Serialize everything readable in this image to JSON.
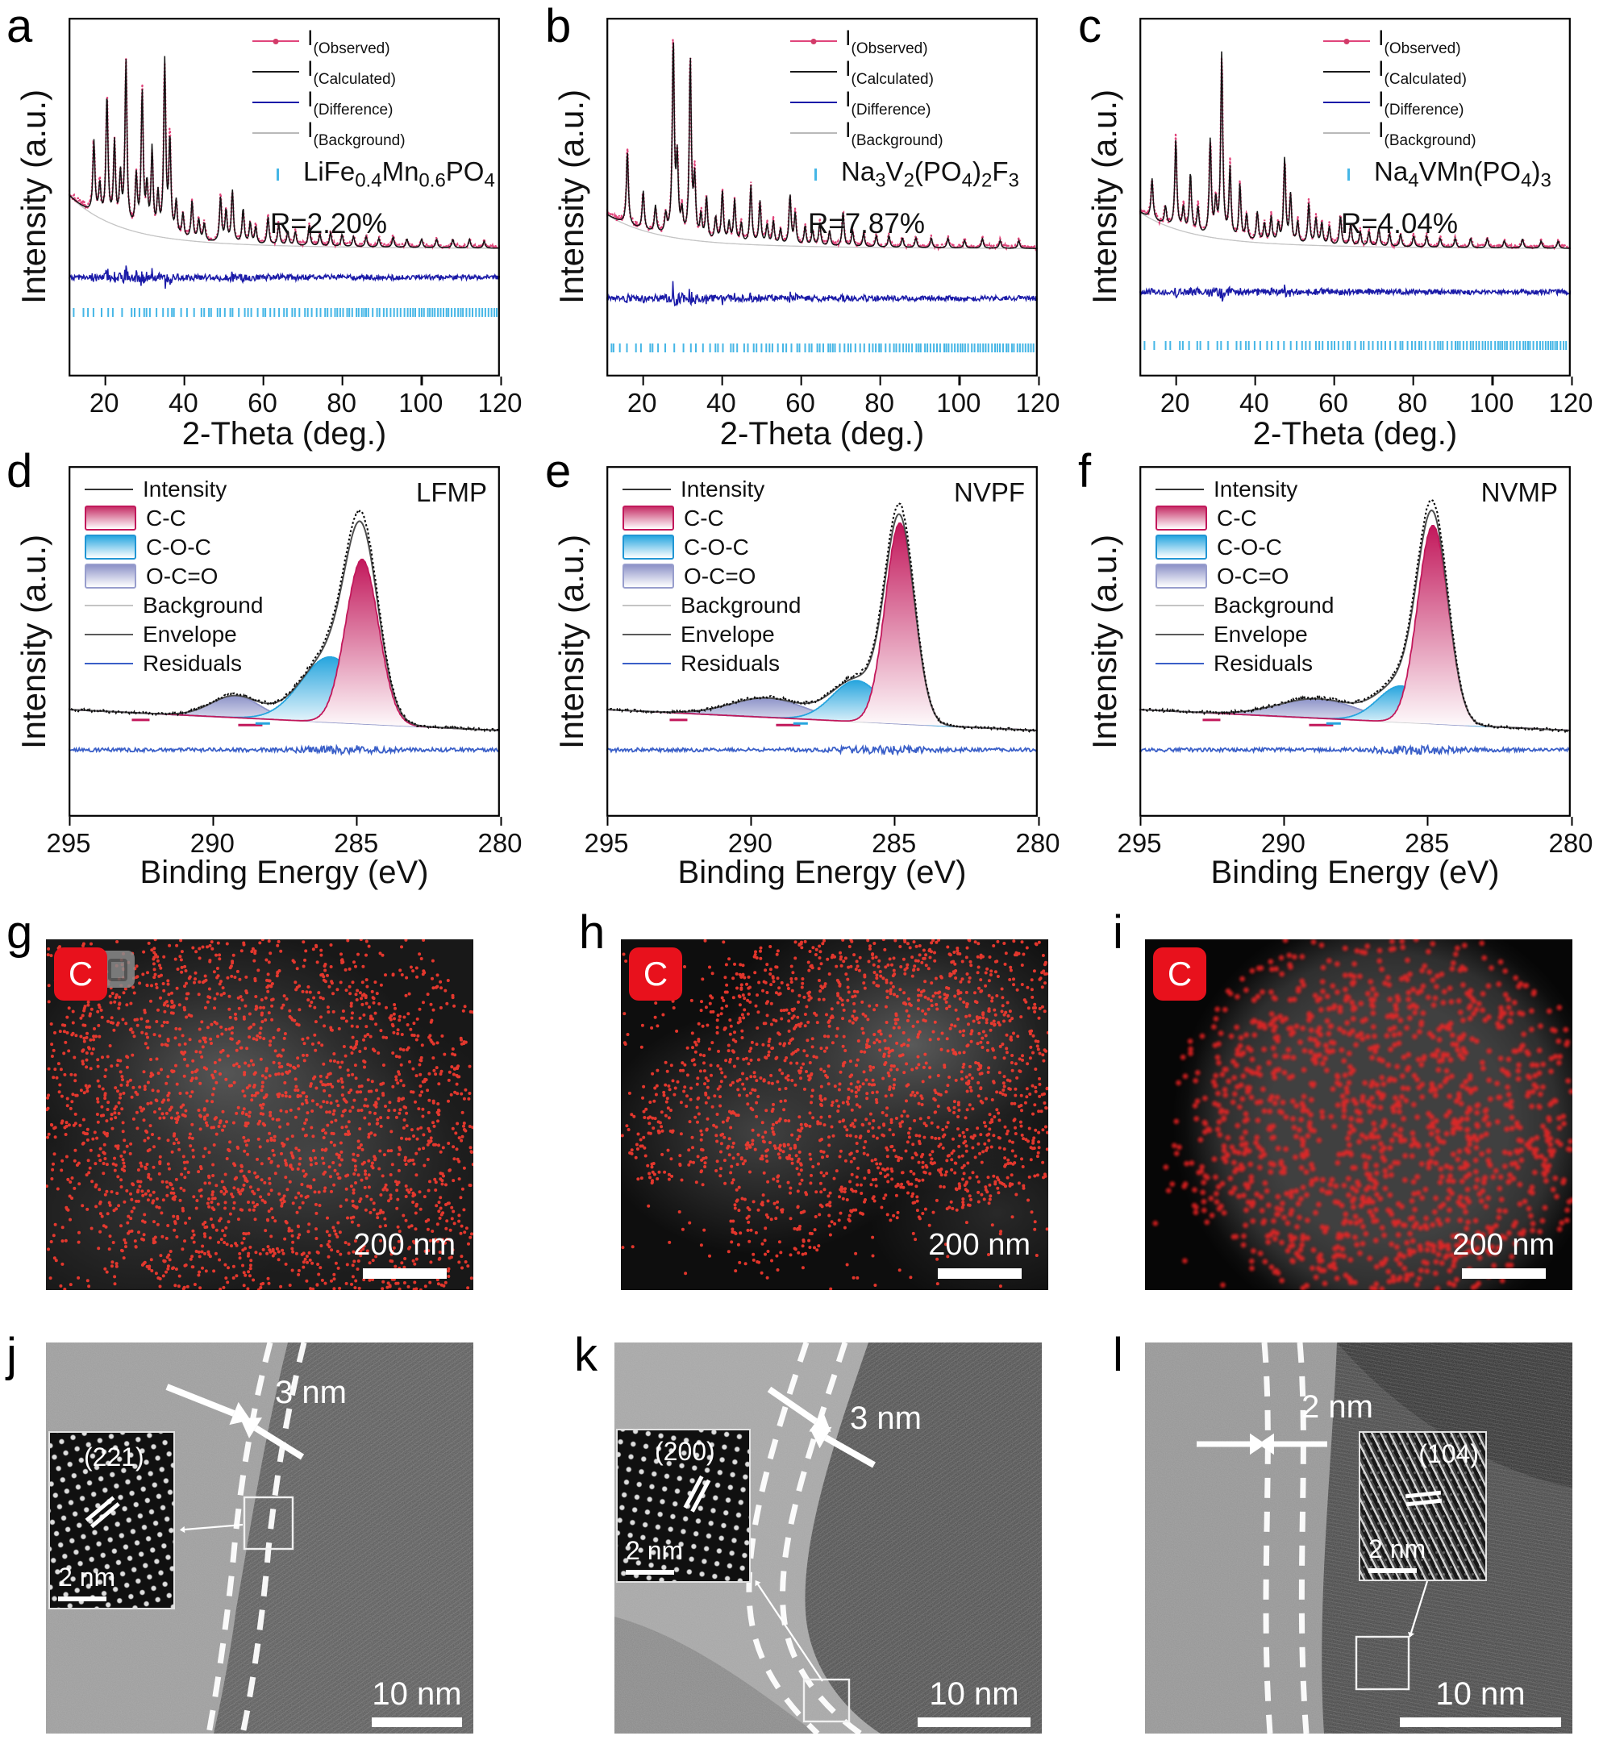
{
  "colors": {
    "observed": "#e0457b",
    "calculated": "#141414",
    "difference": "#1b1ba8",
    "background_line": "#c4c4c4",
    "bragg_ticks": "#45b6e6",
    "cc": "#c2185b",
    "coc": "#27a5de",
    "oco": "#8d93c8",
    "envelope": "#4f4f4f",
    "residuals": "#3a5fc8",
    "intensity": "#0d0d0d",
    "badge_red": "#e8111c",
    "map_dots": "#ff3b30"
  },
  "xrd_axis": {
    "xlabel": "2-Theta (deg.)",
    "ylabel": "Intensity (a.u.)",
    "ticks": [
      "20",
      "40",
      "60",
      "80",
      "100",
      "120"
    ]
  },
  "xps_axis": {
    "xlabel": "Binding Energy (eV)",
    "ylabel": "Intensity (a.u.)",
    "ticks": [
      "295",
      "290",
      "285",
      "280"
    ]
  },
  "xrd_legend": [
    {
      "main": "I",
      "sub": "(Observed)"
    },
    {
      "main": "I",
      "sub": "(Calculated)"
    },
    {
      "main": "I",
      "sub": "(Difference)"
    },
    {
      "main": "I",
      "sub": "(Background)"
    }
  ],
  "xps_legend": [
    "Intensity",
    "C-C",
    "C-O-C",
    "O-C=O",
    "Background",
    "Envelope",
    "Residuals"
  ],
  "xrd_panels": [
    {
      "letter": "a",
      "formula": [
        [
          "LiFe",
          ""
        ],
        [
          "",
          "0.4"
        ],
        [
          "Mn",
          ""
        ],
        [
          "",
          "0.6"
        ],
        [
          "PO",
          ""
        ],
        [
          "",
          "4"
        ]
      ],
      "r_label": "R=2.20%"
    },
    {
      "letter": "b",
      "formula": [
        [
          "Na",
          ""
        ],
        [
          "",
          "3"
        ],
        [
          "V",
          ""
        ],
        [
          "",
          "2"
        ],
        [
          "(PO",
          ""
        ],
        [
          "",
          "4"
        ],
        [
          ")",
          ""
        ],
        [
          "",
          "2"
        ],
        [
          "F",
          ""
        ],
        [
          "",
          "3"
        ]
      ],
      "r_label": "R=7.87%"
    },
    {
      "letter": "c",
      "formula": [
        [
          "Na",
          ""
        ],
        [
          "",
          "4"
        ],
        [
          "VMn(PO",
          ""
        ],
        [
          "",
          "4"
        ],
        [
          ")",
          ""
        ],
        [
          "",
          "3"
        ]
      ],
      "r_label": "R=4.04%"
    }
  ],
  "xps_panels": [
    {
      "letter": "d",
      "tag": "LFMP"
    },
    {
      "letter": "e",
      "tag": "NVPF"
    },
    {
      "letter": "f",
      "tag": "NVMP"
    }
  ],
  "eds_panels": [
    {
      "letter": "g",
      "element_label": "C",
      "scale_label": "200 nm"
    },
    {
      "letter": "h",
      "element_label": "C",
      "scale_label": "200 nm"
    },
    {
      "letter": "i",
      "element_label": "C",
      "scale_label": "200 nm"
    }
  ],
  "tem_panels": [
    {
      "letter": "j",
      "thickness_label": "3 nm",
      "plane_label": "(221)",
      "inset_scale_label": "2 nm",
      "scale_label": "10 nm"
    },
    {
      "letter": "k",
      "thickness_label": "3 nm",
      "plane_label": "(200)",
      "inset_scale_label": "2 nm",
      "scale_label": "10 nm"
    },
    {
      "letter": "l",
      "thickness_label": "2 nm",
      "plane_label": "(104)",
      "inset_scale_label": "2 nm",
      "scale_label": "10 nm"
    }
  ],
  "chart_data": [
    {
      "id": "xrd-a",
      "type": "line",
      "sample": "LiFe0.4Mn0.6PO4",
      "r_factor": "R=2.20%",
      "xlabel": "2-Theta (deg.)",
      "ylabel": "Intensity (a.u.)",
      "xlim": [
        11,
        120
      ],
      "legend_position": "top-center",
      "series": [
        "I(Observed)",
        "I(Calculated)",
        "I(Difference)",
        "I(Background)",
        "Bragg positions"
      ],
      "peaks": [
        [
          17.4,
          0.42
        ],
        [
          18.9,
          0.18
        ],
        [
          20.7,
          0.72
        ],
        [
          22.6,
          0.46
        ],
        [
          24.1,
          0.28
        ],
        [
          25.5,
          0.95
        ],
        [
          28.1,
          0.3
        ],
        [
          29.6,
          0.8
        ],
        [
          30.8,
          0.25
        ],
        [
          32.1,
          0.48
        ],
        [
          33.6,
          0.22
        ],
        [
          35.3,
          1.0
        ],
        [
          36.6,
          0.55
        ],
        [
          38.2,
          0.2
        ],
        [
          39.9,
          0.14
        ],
        [
          42.2,
          0.22
        ],
        [
          43.9,
          0.12
        ],
        [
          45.3,
          0.1
        ],
        [
          49.4,
          0.26
        ],
        [
          50.8,
          0.18
        ],
        [
          52.4,
          0.3
        ],
        [
          55.1,
          0.2
        ],
        [
          56.9,
          0.12
        ],
        [
          58.3,
          0.1
        ],
        [
          61.4,
          0.16
        ],
        [
          64.1,
          0.12
        ],
        [
          66.4,
          0.08
        ],
        [
          68.3,
          0.08
        ],
        [
          71.8,
          0.12
        ],
        [
          74.5,
          0.07
        ],
        [
          77.2,
          0.08
        ],
        [
          80.1,
          0.07
        ],
        [
          83.0,
          0.06
        ],
        [
          86.2,
          0.06
        ],
        [
          89.4,
          0.05
        ],
        [
          93.0,
          0.06
        ],
        [
          96.5,
          0.05
        ],
        [
          100.2,
          0.05
        ],
        [
          104.0,
          0.05
        ],
        [
          108.1,
          0.05
        ],
        [
          112.3,
          0.05
        ],
        [
          116.0,
          0.04
        ]
      ]
    },
    {
      "id": "xrd-b",
      "type": "line",
      "sample": "Na3V2(PO4)2F3",
      "r_factor": "R=7.87%",
      "xlabel": "2-Theta (deg.)",
      "ylabel": "Intensity (a.u.)",
      "xlim": [
        11,
        120
      ],
      "legend_position": "top-center",
      "series": [
        "I(Observed)",
        "I(Calculated)",
        "I(Difference)",
        "I(Background)",
        "Bragg positions"
      ],
      "peaks": [
        [
          16.3,
          0.38
        ],
        [
          20.3,
          0.2
        ],
        [
          23.4,
          0.14
        ],
        [
          26.0,
          0.1
        ],
        [
          27.9,
          1.0
        ],
        [
          28.9,
          0.38
        ],
        [
          30.1,
          0.12
        ],
        [
          32.2,
          0.92
        ],
        [
          33.3,
          0.3
        ],
        [
          34.9,
          0.12
        ],
        [
          36.3,
          0.22
        ],
        [
          38.6,
          0.12
        ],
        [
          40.3,
          0.26
        ],
        [
          42.0,
          0.1
        ],
        [
          43.4,
          0.22
        ],
        [
          45.1,
          0.1
        ],
        [
          47.5,
          0.3
        ],
        [
          49.8,
          0.22
        ],
        [
          51.6,
          0.1
        ],
        [
          53.2,
          0.12
        ],
        [
          55.0,
          0.08
        ],
        [
          57.4,
          0.26
        ],
        [
          58.7,
          0.16
        ],
        [
          61.2,
          0.1
        ],
        [
          63.1,
          0.08
        ],
        [
          64.9,
          0.12
        ],
        [
          67.4,
          0.08
        ],
        [
          70.8,
          0.18
        ],
        [
          73.2,
          0.08
        ],
        [
          76.0,
          0.07
        ],
        [
          79.2,
          0.06
        ],
        [
          82.4,
          0.06
        ],
        [
          85.8,
          0.05
        ],
        [
          89.2,
          0.05
        ],
        [
          93.1,
          0.05
        ],
        [
          97.3,
          0.05
        ],
        [
          101.5,
          0.04
        ],
        [
          106.0,
          0.05
        ],
        [
          110.5,
          0.04
        ],
        [
          115.2,
          0.04
        ]
      ]
    },
    {
      "id": "xrd-c",
      "type": "line",
      "sample": "Na4VMn(PO4)3",
      "r_factor": "R=4.04%",
      "xlabel": "2-Theta (deg.)",
      "ylabel": "Intensity (a.u.)",
      "xlim": [
        11,
        120
      ],
      "legend_position": "top-center",
      "series": [
        "I(Observed)",
        "I(Calculated)",
        "I(Difference)",
        "I(Background)",
        "Bragg positions"
      ],
      "peaks": [
        [
          14.2,
          0.22
        ],
        [
          17.6,
          0.1
        ],
        [
          20.2,
          0.48
        ],
        [
          22.1,
          0.12
        ],
        [
          23.9,
          0.32
        ],
        [
          25.8,
          0.14
        ],
        [
          28.9,
          0.52
        ],
        [
          30.3,
          0.18
        ],
        [
          31.8,
          1.0
        ],
        [
          33.9,
          0.38
        ],
        [
          36.4,
          0.3
        ],
        [
          38.1,
          0.14
        ],
        [
          40.8,
          0.16
        ],
        [
          42.6,
          0.1
        ],
        [
          44.3,
          0.14
        ],
        [
          46.1,
          0.1
        ],
        [
          47.7,
          0.46
        ],
        [
          49.2,
          0.26
        ],
        [
          51.0,
          0.12
        ],
        [
          53.8,
          0.22
        ],
        [
          55.6,
          0.14
        ],
        [
          57.1,
          0.12
        ],
        [
          59.0,
          0.1
        ],
        [
          61.8,
          0.16
        ],
        [
          64.4,
          0.12
        ],
        [
          66.8,
          0.08
        ],
        [
          69.0,
          0.08
        ],
        [
          71.5,
          0.1
        ],
        [
          74.2,
          0.07
        ],
        [
          77.0,
          0.07
        ],
        [
          80.3,
          0.06
        ],
        [
          83.6,
          0.06
        ],
        [
          87.0,
          0.05
        ],
        [
          90.8,
          0.05
        ],
        [
          94.7,
          0.05
        ],
        [
          98.9,
          0.05
        ],
        [
          103.2,
          0.04
        ],
        [
          107.8,
          0.05
        ],
        [
          112.5,
          0.04
        ],
        [
          116.8,
          0.04
        ]
      ]
    },
    {
      "id": "xps-d",
      "type": "area",
      "sample": "LFMP",
      "xlabel": "Binding Energy (eV)",
      "ylabel": "Intensity (a.u.)",
      "xlim": [
        295,
        280
      ],
      "legend_position": "top-left",
      "series": [
        "Intensity",
        "C-C",
        "C-O-C",
        "O-C=O",
        "Background",
        "Envelope",
        "Residuals"
      ],
      "components": [
        {
          "name": "C-C",
          "center": 284.8,
          "fwhm": 1.35,
          "height": 0.68
        },
        {
          "name": "C-O-C",
          "center": 285.9,
          "fwhm": 2.4,
          "height": 0.27
        },
        {
          "name": "O-C=O",
          "center": 289.2,
          "fwhm": 2.0,
          "height": 0.09
        }
      ]
    },
    {
      "id": "xps-e",
      "type": "area",
      "sample": "NVPF",
      "xlabel": "Binding Energy (eV)",
      "ylabel": "Intensity (a.u.)",
      "xlim": [
        295,
        280
      ],
      "legend_position": "top-left",
      "series": [
        "Intensity",
        "C-C",
        "C-O-C",
        "O-C=O",
        "Background",
        "Envelope",
        "Residuals"
      ],
      "components": [
        {
          "name": "C-C",
          "center": 284.8,
          "fwhm": 1.2,
          "height": 0.83
        },
        {
          "name": "C-O-C",
          "center": 286.3,
          "fwhm": 2.0,
          "height": 0.17
        },
        {
          "name": "O-C=O",
          "center": 289.4,
          "fwhm": 3.0,
          "height": 0.08
        }
      ]
    },
    {
      "id": "xps-f",
      "type": "area",
      "sample": "NVMP",
      "xlabel": "Binding Energy (eV)",
      "ylabel": "Intensity (a.u.)",
      "xlim": [
        295,
        280
      ],
      "legend_position": "top-left",
      "series": [
        "Intensity",
        "C-C",
        "C-O-C",
        "O-C=O",
        "Background",
        "Envelope",
        "Residuals"
      ],
      "components": [
        {
          "name": "C-C",
          "center": 284.8,
          "fwhm": 1.25,
          "height": 0.82
        },
        {
          "name": "C-O-C",
          "center": 285.9,
          "fwhm": 1.9,
          "height": 0.15
        },
        {
          "name": "O-C=O",
          "center": 288.8,
          "fwhm": 3.2,
          "height": 0.08
        }
      ]
    }
  ]
}
